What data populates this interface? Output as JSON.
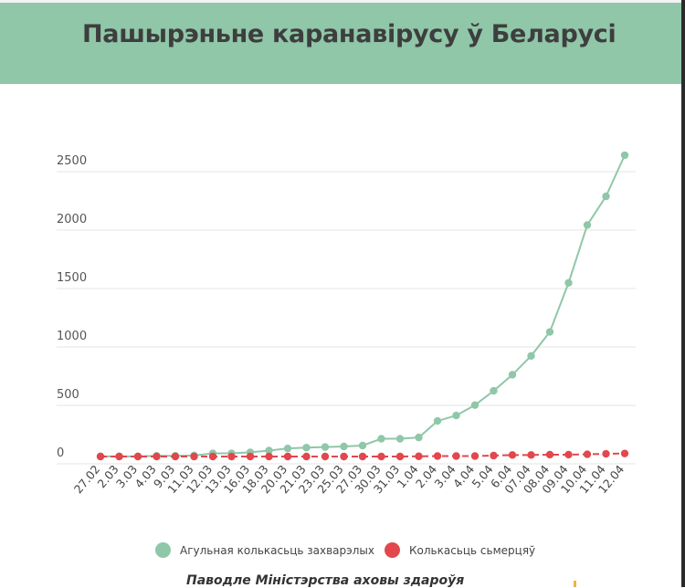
{
  "title": "Пашырэньне каранавірусу ў Беларусі",
  "source_note": "Паводле Міністэрства аховы здароўя",
  "chart_data": {
    "type": "line",
    "title": "Пашырэньне каранавірусу ў Беларусі",
    "categories": [
      "27.02",
      "2.03",
      "3.03",
      "4.03",
      "9.03",
      "11.03",
      "12.03",
      "13.03",
      "16.03",
      "18.03",
      "20.03",
      "21.03",
      "23.03",
      "25.03",
      "27.03",
      "30.03",
      "31.03",
      "1.04",
      "2.04",
      "3.04",
      "4.04",
      "5.04",
      "6.04",
      "07.04",
      "08.04",
      "09.04",
      "10.04",
      "11.04",
      "12.04"
    ],
    "series": [
      {
        "name": "Агульная колькасьць захварэлых",
        "color": "#8fc7a8",
        "values": [
          1,
          1,
          1,
          6,
          6,
          9,
          27,
          27,
          36,
          51,
          69,
          76,
          81,
          86,
          94,
          152,
          152,
          163,
          304,
          351,
          440,
          562,
          700,
          861,
          1066,
          1486,
          1981,
          2226,
          2578
        ]
      },
      {
        "name": "Колькасьць сьмерцяў",
        "color": "#e2474d",
        "values": [
          0,
          0,
          0,
          0,
          0,
          0,
          0,
          0,
          0,
          0,
          0,
          0,
          0,
          0,
          0,
          0,
          0,
          2,
          4,
          4,
          4,
          8,
          13,
          13,
          16,
          16,
          19,
          23,
          26
        ]
      }
    ],
    "ylim": [
      0,
      2500
    ],
    "yticks": [
      0,
      500,
      1000,
      1500,
      2000,
      2500
    ],
    "grid": true,
    "legend_position": "bottom"
  }
}
